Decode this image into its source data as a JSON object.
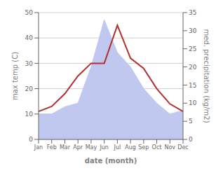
{
  "chart_data": {
    "type": "line",
    "categories": [
      "Jan",
      "Feb",
      "Mar",
      "Apr",
      "May",
      "Jun",
      "Jul",
      "Aug",
      "Sep",
      "Oct",
      "Nov",
      "Dec"
    ],
    "series": [
      {
        "type": "area",
        "color": "#c0c8f0",
        "axis": "y2",
        "values": [
          7,
          7,
          9,
          10,
          20,
          33,
          24,
          20,
          14,
          10,
          7,
          8
        ]
      },
      {
        "type": "line",
        "color": "#b03030",
        "values": [
          11,
          13,
          18,
          25,
          30,
          30,
          45,
          32,
          28,
          20,
          14,
          11
        ]
      }
    ],
    "xlabel": "date (month)",
    "ylabel": "max temp (C)",
    "y2label": "med. precipitation (kg/m2)",
    "ylim": [
      0,
      50
    ],
    "yticks": [
      0,
      10,
      20,
      30,
      40,
      50
    ],
    "y2lim": [
      0,
      35
    ],
    "y2ticks": [
      0,
      5,
      10,
      15,
      20,
      25,
      30,
      35
    ],
    "grid": true
  }
}
